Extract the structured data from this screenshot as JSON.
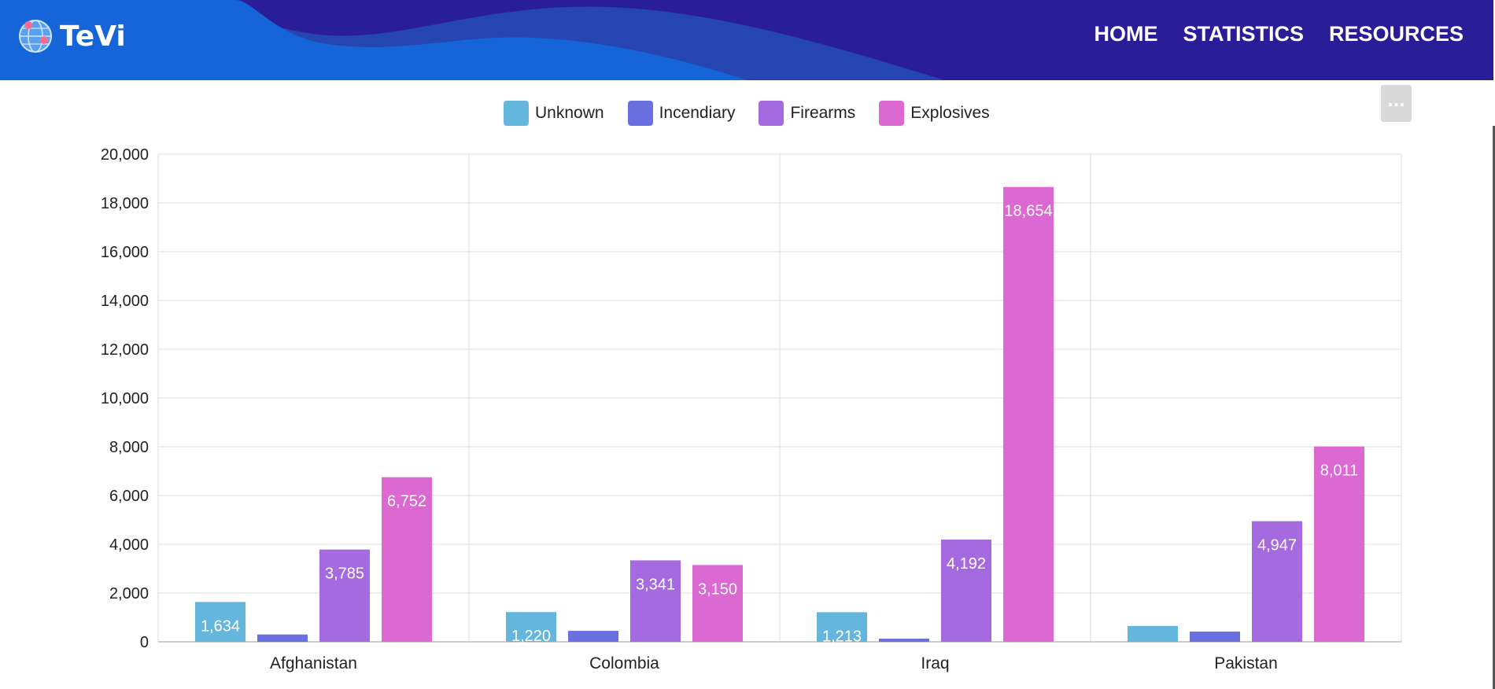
{
  "header": {
    "brand": "TeVi",
    "nav": [
      "HOME",
      "STATISTICS",
      "RESOURCES"
    ]
  },
  "menu_button_label": "...",
  "colors": {
    "header_bg": "#2a1e98",
    "wave_light": "#1565d8",
    "wave_mid": "#2546b0",
    "Unknown": "#65b6dc",
    "Incendiary": "#6a70e0",
    "Firearms": "#a56adf",
    "Explosives": "#dc68d1"
  },
  "chart_data": {
    "type": "bar",
    "categories": [
      "Afghanistan",
      "Colombia",
      "Iraq",
      "Pakistan"
    ],
    "series": [
      {
        "name": "Unknown",
        "values": [
          1634,
          1220,
          1213,
          650
        ],
        "labels": [
          "1,634",
          "1,220",
          "1,213",
          ""
        ]
      },
      {
        "name": "Incendiary",
        "values": [
          300,
          450,
          130,
          420
        ],
        "labels": [
          "",
          "",
          "",
          ""
        ]
      },
      {
        "name": "Firearms",
        "values": [
          3785,
          3341,
          4192,
          4947
        ],
        "labels": [
          "3,785",
          "3,341",
          "4,192",
          "4,947"
        ]
      },
      {
        "name": "Explosives",
        "values": [
          6752,
          3150,
          18654,
          8011
        ],
        "labels": [
          "6,752",
          "3,150",
          "18,654",
          "8,011"
        ]
      }
    ],
    "ylim": [
      0,
      20000
    ],
    "yticks": [
      0,
      2000,
      4000,
      6000,
      8000,
      10000,
      12000,
      14000,
      16000,
      18000,
      20000
    ],
    "ytick_labels": [
      "0",
      "2,000",
      "4,000",
      "6,000",
      "8,000",
      "10,000",
      "12,000",
      "14,000",
      "16,000",
      "18,000",
      "20,000"
    ],
    "grid": true,
    "legend": "top"
  }
}
